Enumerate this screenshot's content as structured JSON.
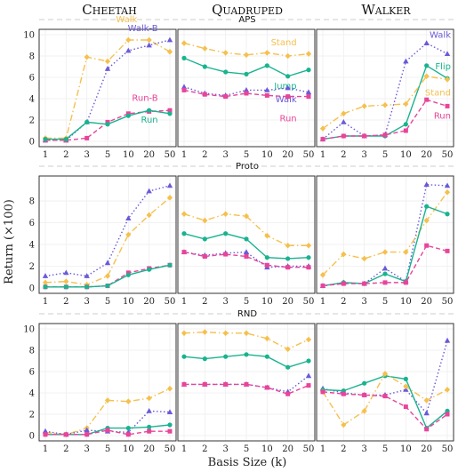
{
  "figure": {
    "columns": [
      "Cheetah",
      "Quadruped",
      "Walker"
    ],
    "rows": [
      "APS",
      "Proto",
      "RND"
    ],
    "ylabel": "Return (×100)",
    "xlabel": "Basis Size (k)"
  },
  "colors": {
    "walk": "#f5c04e",
    "run": "#19b38f",
    "run_b": "#e8449a",
    "walk_b": "#6a5ad8",
    "stand": "#f5c04e",
    "jump": "#19b38f",
    "flip": "#19b38f",
    "quad_run": "#e8449a",
    "quad_walk": "#6a5ad8"
  },
  "chart_data": [
    {
      "type": "line",
      "id": "cheetah-aps",
      "row": 0,
      "col": 0,
      "categories": [
        "1",
        "2",
        "3",
        "5",
        "10",
        "20",
        "50"
      ],
      "yticks": [
        "0",
        "2",
        "4",
        "6",
        "8",
        "10"
      ],
      "ylim": [
        0,
        10
      ],
      "series": [
        {
          "name": "Walk",
          "style": "dashdot",
          "marker": "diamond",
          "color": "#f5c04e",
          "values": [
            0.3,
            0.3,
            7.9,
            7.5,
            9.5,
            9.5,
            8.4
          ],
          "label_index": 4,
          "label_dy": -20
        },
        {
          "name": "Walk-B",
          "style": "dotted",
          "marker": "triangle",
          "color": "#6a5ad8",
          "values": [
            0.1,
            0.1,
            1.8,
            6.8,
            8.5,
            9.0,
            9.5
          ],
          "label_index": 5,
          "label_dy": -16
        },
        {
          "name": "Run-B",
          "style": "dashed",
          "marker": "square",
          "color": "#e8449a",
          "values": [
            0.1,
            0.1,
            0.3,
            1.8,
            2.6,
            2.8,
            2.9
          ],
          "label_index": 5,
          "label_dy": -12
        },
        {
          "name": "Run",
          "style": "solid",
          "marker": "circle",
          "color": "#19b38f",
          "values": [
            0.2,
            0.2,
            1.8,
            1.6,
            2.4,
            2.9,
            2.6
          ],
          "label_index": 5,
          "label_dy": 14
        }
      ]
    },
    {
      "type": "line",
      "id": "quadruped-aps",
      "row": 0,
      "col": 1,
      "categories": [
        "1",
        "2",
        "3",
        "5",
        "10",
        "20",
        "50"
      ],
      "yticks": [],
      "ylim": [
        0,
        10
      ],
      "series": [
        {
          "name": "Stand",
          "style": "dashdot",
          "marker": "diamond",
          "color": "#f5c04e",
          "values": [
            9.2,
            8.7,
            8.3,
            8.1,
            8.3,
            8.0,
            8.2
          ],
          "label_index": 5,
          "label_dy": -12
        },
        {
          "name": "Jump",
          "style": "solid",
          "marker": "circle",
          "color": "#19b38f",
          "values": [
            7.8,
            7.0,
            6.5,
            6.3,
            7.1,
            6.1,
            6.7
          ],
          "label_index": 5,
          "label_dy": 14
        },
        {
          "name": "Walk",
          "style": "dotted",
          "marker": "triangle",
          "color": "#6a5ad8",
          "values": [
            5.1,
            4.5,
            4.3,
            4.8,
            4.8,
            5.0,
            4.6
          ],
          "label_index": 5,
          "label_dy": 16
        },
        {
          "name": "Run",
          "style": "dashed",
          "marker": "square",
          "color": "#e8449a",
          "values": [
            4.8,
            4.4,
            4.2,
            4.5,
            4.3,
            4.2,
            4.2
          ],
          "label_index": 5,
          "label_dy": 28
        }
      ]
    },
    {
      "type": "line",
      "id": "walker-aps",
      "row": 0,
      "col": 2,
      "categories": [
        "1",
        "2",
        "3",
        "5",
        "10",
        "20",
        "50"
      ],
      "yticks": [],
      "ylim": [
        0,
        10
      ],
      "series": [
        {
          "name": "Walk",
          "style": "dotted",
          "marker": "triangle",
          "color": "#6a5ad8",
          "values": [
            0.2,
            1.8,
            0.5,
            0.6,
            7.5,
            9.2,
            8.2
          ],
          "label_index": 6,
          "label_dy": -18
        },
        {
          "name": "Flip",
          "style": "solid",
          "marker": "circle",
          "color": "#19b38f",
          "values": [
            0.2,
            0.5,
            0.5,
            0.5,
            1.6,
            7.1,
            5.9
          ],
          "label_index": 6,
          "label_dy": -10
        },
        {
          "name": "Stand",
          "style": "dashdot",
          "marker": "diamond",
          "color": "#f5c04e",
          "values": [
            1.2,
            2.6,
            3.3,
            3.4,
            3.5,
            6.1,
            5.8
          ],
          "label_index": 6,
          "label_dy": 18
        },
        {
          "name": "Run",
          "style": "dashed",
          "marker": "square",
          "color": "#e8449a",
          "values": [
            0.2,
            0.5,
            0.5,
            0.6,
            1.0,
            3.9,
            3.3
          ],
          "label_index": 6,
          "label_dy": 14
        }
      ]
    },
    {
      "type": "line",
      "id": "cheetah-proto",
      "row": 1,
      "col": 0,
      "categories": [
        "1",
        "2",
        "3",
        "5",
        "10",
        "20",
        "50"
      ],
      "yticks": [
        "0",
        "2",
        "4",
        "6",
        "8"
      ],
      "ylim": [
        0,
        9.8
      ],
      "series": [
        {
          "name": "",
          "style": "dotted",
          "marker": "triangle",
          "color": "#6a5ad8",
          "values": [
            1.1,
            1.4,
            1.1,
            2.3,
            6.4,
            8.9,
            9.4
          ]
        },
        {
          "name": "",
          "style": "dashdot",
          "marker": "diamond",
          "color": "#f5c04e",
          "values": [
            0.5,
            0.6,
            0.3,
            1.1,
            4.9,
            6.7,
            8.3
          ]
        },
        {
          "name": "",
          "style": "dashed",
          "marker": "square",
          "color": "#e8449a",
          "values": [
            0.1,
            0.1,
            0.1,
            0.2,
            1.4,
            1.8,
            2.1
          ]
        },
        {
          "name": "",
          "style": "solid",
          "marker": "circle",
          "color": "#19b38f",
          "values": [
            0.1,
            0.1,
            0.1,
            0.2,
            1.2,
            1.7,
            2.1
          ]
        }
      ]
    },
    {
      "type": "line",
      "id": "quadruped-proto",
      "row": 1,
      "col": 1,
      "categories": [
        "1",
        "2",
        "3",
        "5",
        "10",
        "20",
        "50"
      ],
      "yticks": [],
      "ylim": [
        0,
        9.8
      ],
      "series": [
        {
          "name": "",
          "style": "dashdot",
          "marker": "diamond",
          "color": "#f5c04e",
          "values": [
            6.8,
            6.2,
            6.8,
            6.6,
            4.8,
            3.9,
            3.9
          ]
        },
        {
          "name": "",
          "style": "solid",
          "marker": "circle",
          "color": "#19b38f",
          "values": [
            5.0,
            4.5,
            5.0,
            4.5,
            2.8,
            2.7,
            2.8
          ]
        },
        {
          "name": "",
          "style": "dotted",
          "marker": "triangle",
          "color": "#6a5ad8",
          "values": [
            3.3,
            3.0,
            3.2,
            3.3,
            1.9,
            2.0,
            2.0
          ]
        },
        {
          "name": "",
          "style": "dashed",
          "marker": "square",
          "color": "#e8449a",
          "values": [
            3.3,
            2.9,
            3.1,
            2.9,
            2.1,
            1.9,
            1.9
          ]
        }
      ]
    },
    {
      "type": "line",
      "id": "walker-proto",
      "row": 1,
      "col": 2,
      "categories": [
        "1",
        "2",
        "3",
        "5",
        "10",
        "20",
        "50"
      ],
      "yticks": [],
      "ylim": [
        0,
        9.8
      ],
      "series": [
        {
          "name": "",
          "style": "dotted",
          "marker": "triangle",
          "color": "#6a5ad8",
          "values": [
            0.2,
            0.5,
            0.4,
            1.8,
            0.6,
            9.5,
            9.4
          ]
        },
        {
          "name": "",
          "style": "dashdot",
          "marker": "diamond",
          "color": "#f5c04e",
          "values": [
            1.2,
            3.1,
            2.7,
            3.3,
            3.3,
            6.2,
            8.8
          ]
        },
        {
          "name": "",
          "style": "solid",
          "marker": "circle",
          "color": "#19b38f",
          "values": [
            0.2,
            0.5,
            0.4,
            1.3,
            0.6,
            7.5,
            6.8
          ]
        },
        {
          "name": "",
          "style": "dashed",
          "marker": "square",
          "color": "#e8449a",
          "values": [
            0.2,
            0.4,
            0.4,
            0.5,
            0.5,
            3.9,
            3.4
          ]
        }
      ]
    },
    {
      "type": "line",
      "id": "cheetah-rnd",
      "row": 2,
      "col": 0,
      "categories": [
        "1",
        "2",
        "3",
        "5",
        "10",
        "20",
        "50"
      ],
      "yticks": [
        "0",
        "2",
        "4",
        "6",
        "8",
        "10"
      ],
      "ylim": [
        0,
        10
      ],
      "series": [
        {
          "name": "",
          "style": "dashdot",
          "marker": "diamond",
          "color": "#f5c04e",
          "values": [
            0.3,
            0.1,
            0.7,
            3.3,
            3.2,
            3.5,
            4.4
          ]
        },
        {
          "name": "",
          "style": "dotted",
          "marker": "triangle",
          "color": "#6a5ad8",
          "values": [
            0.4,
            0.1,
            0.5,
            0.4,
            0.3,
            2.3,
            2.2
          ]
        },
        {
          "name": "",
          "style": "solid",
          "marker": "circle",
          "color": "#19b38f",
          "values": [
            0.1,
            0.1,
            0.1,
            0.7,
            0.7,
            0.8,
            1.0
          ]
        },
        {
          "name": "",
          "style": "dashed",
          "marker": "square",
          "color": "#e8449a",
          "values": [
            0.1,
            0.1,
            0.1,
            0.5,
            0.1,
            0.4,
            0.4
          ]
        }
      ]
    },
    {
      "type": "line",
      "id": "quadruped-rnd",
      "row": 2,
      "col": 1,
      "categories": [
        "1",
        "2",
        "3",
        "5",
        "10",
        "20",
        "50"
      ],
      "yticks": [],
      "ylim": [
        0,
        10
      ],
      "series": [
        {
          "name": "",
          "style": "dashdot",
          "marker": "diamond",
          "color": "#f5c04e",
          "values": [
            9.6,
            9.7,
            9.6,
            9.6,
            9.1,
            8.1,
            9.0
          ]
        },
        {
          "name": "",
          "style": "solid",
          "marker": "circle",
          "color": "#19b38f",
          "values": [
            7.4,
            7.2,
            7.4,
            7.6,
            7.4,
            6.4,
            7.0
          ]
        },
        {
          "name": "",
          "style": "dotted",
          "marker": "triangle",
          "color": "#6a5ad8",
          "values": [
            4.8,
            4.8,
            4.8,
            4.8,
            4.5,
            4.1,
            5.6
          ]
        },
        {
          "name": "",
          "style": "dashed",
          "marker": "square",
          "color": "#e8449a",
          "values": [
            4.8,
            4.8,
            4.8,
            4.8,
            4.5,
            3.9,
            4.7
          ]
        }
      ]
    },
    {
      "type": "line",
      "id": "walker-rnd",
      "row": 2,
      "col": 2,
      "categories": [
        "1",
        "2",
        "3",
        "5",
        "10",
        "20",
        "50"
      ],
      "yticks": [],
      "ylim": [
        0,
        10
      ],
      "series": [
        {
          "name": "",
          "style": "dotted",
          "marker": "triangle",
          "color": "#6a5ad8",
          "values": [
            4.4,
            4.0,
            3.8,
            3.8,
            4.3,
            2.1,
            8.9
          ]
        },
        {
          "name": "",
          "style": "solid",
          "marker": "circle",
          "color": "#19b38f",
          "values": [
            4.3,
            4.2,
            4.9,
            5.6,
            5.3,
            0.7,
            2.3
          ]
        },
        {
          "name": "",
          "style": "dashdot",
          "marker": "diamond",
          "color": "#f5c04e",
          "values": [
            4.1,
            1.0,
            2.3,
            5.8,
            4.6,
            3.3,
            4.3
          ]
        },
        {
          "name": "",
          "style": "dashed",
          "marker": "square",
          "color": "#e8449a",
          "values": [
            4.1,
            3.9,
            3.8,
            3.7,
            2.7,
            0.6,
            2.0
          ]
        }
      ]
    }
  ]
}
